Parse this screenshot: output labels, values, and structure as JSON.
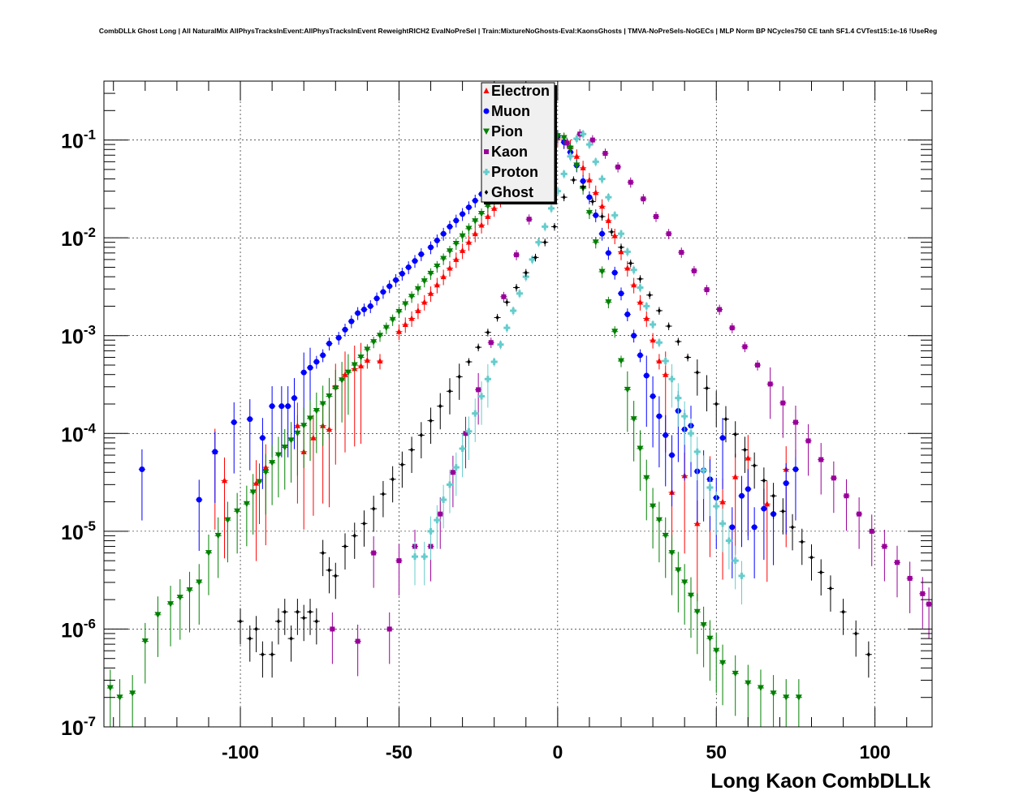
{
  "chart_data": {
    "type": "scatter",
    "title": "CombDLLk Ghost Long | All NaturalMix AllPhysTracksInEvent:AllPhysTracksInEvent ReweightRICH2 EvalNoPreSel | Train:MixtureNoGhosts-Eval:KaonsGhosts | TMVA-NoPreSels-NoGECs | MLP Norm BP NCycles750 CE tanh SF1.4 CVTest15:1e-16 !UseReg",
    "xlabel": "Long Kaon CombDLLk",
    "ylabel": "",
    "xlim": [
      -143,
      118
    ],
    "ylim": [
      1e-07,
      0.4
    ],
    "yscale": "log",
    "grid": true,
    "legend_position": "top-center",
    "x_ticks": [
      -100,
      -50,
      0,
      50,
      100
    ],
    "x_tick_labels": [
      "-100",
      "-50",
      "0",
      "50",
      "100"
    ],
    "y_ticks": [
      {
        "value": 1e-07,
        "base": "10",
        "exp": "-7"
      },
      {
        "value": 1e-06,
        "base": "10",
        "exp": "-6"
      },
      {
        "value": 1e-05,
        "base": "10",
        "exp": "-5"
      },
      {
        "value": 0.0001,
        "base": "10",
        "exp": "-4"
      },
      {
        "value": 0.001,
        "base": "10",
        "exp": "-3"
      },
      {
        "value": 0.01,
        "base": "10",
        "exp": "-2"
      },
      {
        "value": 0.1,
        "base": "10",
        "exp": "-1"
      }
    ],
    "series": [
      {
        "name": "Electron",
        "color": "#ff0000",
        "marker": "triangle-up",
        "x": [
          -108,
          -105,
          -95,
          -92,
          -82,
          -80,
          -77,
          -74,
          -72,
          -70,
          -67,
          -64,
          -62,
          -60,
          -56,
          -50,
          -48,
          -46,
          -44,
          -42,
          -40,
          -38,
          -36,
          -34,
          -32,
          -30,
          -28,
          -26,
          -24,
          -22,
          -20,
          -18,
          -16,
          -14,
          -12,
          -10,
          -8,
          -6,
          -4,
          -2,
          0,
          2,
          4,
          6,
          8,
          10,
          12,
          14,
          16,
          18,
          20,
          22,
          24,
          26,
          28,
          30,
          32,
          34,
          36,
          40,
          44,
          48,
          52,
          56,
          60,
          66,
          72
        ],
        "y": [
          6.5e-05,
          3.3e-05,
          3.1e-05,
          4.5e-05,
          0.00012,
          6.5e-05,
          9e-05,
          0.00012,
          0.00011,
          0.0003,
          0.0004,
          0.00046,
          0.00049,
          0.00056,
          0.00055,
          0.0011,
          0.0013,
          0.0015,
          0.0018,
          0.0022,
          0.0027,
          0.0033,
          0.004,
          0.0049,
          0.006,
          0.0074,
          0.009,
          0.011,
          0.0135,
          0.0165,
          0.02,
          0.025,
          0.03,
          0.037,
          0.045,
          0.055,
          0.066,
          0.078,
          0.09,
          0.1,
          0.105,
          0.1,
          0.085,
          0.068,
          0.052,
          0.039,
          0.029,
          0.021,
          0.015,
          0.0105,
          0.0072,
          0.0049,
          0.0033,
          0.0022,
          0.0015,
          0.0009,
          0.00055,
          0.0004,
          2.5e-05,
          3.7e-05,
          1.2e-05,
          3.4e-05,
          2e-05,
          3.6e-05,
          5.6e-05,
          1.9e-05,
          4.3e-05
        ],
        "err_low_frac": 0.6,
        "err_high_frac": 0.6
      },
      {
        "name": "Muon",
        "color": "#0000ff",
        "marker": "circle",
        "x": [
          -131,
          -113,
          -108,
          -102,
          -97,
          -93,
          -90,
          -87,
          -85,
          -83,
          -80,
          -78,
          -76,
          -74,
          -72,
          -69,
          -67,
          -65,
          -63,
          -61,
          -59,
          -57,
          -55,
          -53,
          -51,
          -49,
          -47,
          -45,
          -43,
          -40,
          -38,
          -36,
          -34,
          -32,
          -30,
          -28,
          -26,
          -24,
          -22,
          -20,
          -18,
          -16,
          -14,
          -12,
          -10,
          -8,
          -6,
          -4,
          -2,
          0,
          2,
          4,
          6,
          8,
          10,
          12,
          14,
          16,
          18,
          20,
          22,
          24,
          26,
          28,
          30,
          32,
          34,
          36,
          38,
          40,
          42,
          44,
          46,
          48,
          50,
          52,
          55,
          58,
          60,
          62,
          65,
          68,
          72,
          75
        ],
        "y": [
          4.3e-05,
          2.1e-05,
          6.5e-05,
          0.00013,
          0.00014,
          9e-05,
          0.00019,
          0.00019,
          0.00019,
          0.00023,
          0.00042,
          0.00047,
          0.00054,
          0.00063,
          0.00083,
          0.00095,
          0.00115,
          0.0014,
          0.0017,
          0.00185,
          0.002,
          0.0024,
          0.0028,
          0.0032,
          0.0037,
          0.0043,
          0.005,
          0.0058,
          0.0068,
          0.008,
          0.0094,
          0.011,
          0.013,
          0.015,
          0.0175,
          0.0205,
          0.024,
          0.028,
          0.033,
          0.039,
          0.045,
          0.053,
          0.062,
          0.072,
          0.083,
          0.094,
          0.103,
          0.11,
          0.115,
          0.11,
          0.095,
          0.075,
          0.055,
          0.038,
          0.026,
          0.017,
          0.011,
          0.007,
          0.0044,
          0.0027,
          0.00165,
          0.001,
          0.00063,
          0.00039,
          0.00024,
          0.00015,
          9.6e-05,
          6e-05,
          0.00017,
          0.00011,
          0.00012,
          4.1e-05,
          4.2e-05,
          3.4e-05,
          2.2e-05,
          9e-05,
          1.1e-05,
          2.3e-05,
          2.7e-05,
          1.1e-05,
          1.7e-05,
          1.5e-05,
          3.1e-05,
          4.3e-05
        ],
        "err_low_frac": 0.5,
        "err_high_frac": 0.5
      },
      {
        "name": "Pion",
        "color": "#008000",
        "marker": "triangle-down",
        "x": [
          -141,
          -138,
          -134,
          -130,
          -126,
          -122,
          -119,
          -116,
          -113,
          -110,
          -107,
          -104,
          -101,
          -98,
          -96,
          -94,
          -92,
          -90,
          -88,
          -86,
          -84,
          -82,
          -80,
          -78,
          -76,
          -74,
          -72,
          -70,
          -68,
          -66,
          -64,
          -62,
          -60,
          -58,
          -56,
          -54,
          -52,
          -50,
          -48,
          -46,
          -44,
          -42,
          -40,
          -38,
          -36,
          -34,
          -32,
          -30,
          -28,
          -26,
          -24,
          -22,
          -20,
          -18,
          -16,
          -14,
          -12,
          -10,
          -8,
          -6,
          -4,
          -2,
          0,
          2,
          4,
          6,
          8,
          10,
          12,
          14,
          16,
          18,
          20,
          22,
          24,
          26,
          28,
          30,
          32,
          34,
          36,
          38,
          40,
          42,
          44,
          46,
          48,
          50,
          52,
          56,
          60,
          64,
          68,
          72,
          76
        ],
        "y": [
          2.5e-07,
          2e-07,
          2.2e-07,
          7.5e-07,
          1.4e-06,
          1.8e-06,
          2.1e-06,
          2.5e-06,
          3e-06,
          6e-06,
          9e-06,
          1.3e-05,
          1.6e-05,
          1.9e-05,
          2.5e-05,
          3.2e-05,
          4e-05,
          5e-05,
          6e-05,
          7.2e-05,
          8.5e-05,
          0.0001,
          0.00012,
          0.000142,
          0.00017,
          0.0002,
          0.00024,
          0.00029,
          0.00035,
          0.00042,
          0.0005,
          0.0006,
          0.00072,
          0.00086,
          0.001,
          0.0012,
          0.00145,
          0.00175,
          0.0021,
          0.0025,
          0.003,
          0.0036,
          0.0043,
          0.0051,
          0.0061,
          0.0073,
          0.0087,
          0.0104,
          0.0124,
          0.0148,
          0.0176,
          0.021,
          0.025,
          0.0295,
          0.035,
          0.0415,
          0.049,
          0.058,
          0.068,
          0.079,
          0.091,
          0.102,
          0.11,
          0.105,
          0.082,
          0.055,
          0.032,
          0.018,
          0.009,
          0.0045,
          0.0022,
          0.0011,
          0.00055,
          0.00028,
          0.00014,
          7e-05,
          3.5e-05,
          1.8e-05,
          1.3e-05,
          9e-06,
          6e-06,
          4e-06,
          3e-06,
          2.2e-06,
          1.5e-06,
          1.1e-06,
          8e-07,
          6e-07,
          4.5e-07,
          3.5e-07,
          2.8e-07,
          2.5e-07,
          2.2e-07,
          2e-07,
          2e-07
        ],
        "err_low_frac": 0.45,
        "err_high_frac": 0.45
      },
      {
        "name": "Kaon",
        "color": "#990099",
        "marker": "square",
        "x": [
          -71,
          -63,
          -58,
          -53,
          -50,
          -45,
          -40,
          -37,
          -33,
          -29,
          -25,
          -21,
          -17,
          -13,
          -9,
          -5,
          -1,
          3,
          7,
          11,
          15,
          19,
          23,
          27,
          31,
          35,
          39,
          43,
          47,
          51,
          55,
          59,
          63,
          67,
          71,
          75,
          79,
          83,
          87,
          91,
          95,
          99,
          103,
          107,
          111,
          115,
          117
        ],
        "y": [
          1e-06,
          7.5e-07,
          6e-06,
          1e-06,
          5e-06,
          7e-06,
          7e-06,
          1.5e-05,
          4e-05,
          0.0001,
          0.00028,
          0.00085,
          0.0025,
          0.0067,
          0.0155,
          0.032,
          0.058,
          0.093,
          0.115,
          0.1,
          0.073,
          0.053,
          0.037,
          0.025,
          0.0165,
          0.011,
          0.0071,
          0.0046,
          0.00295,
          0.00185,
          0.0012,
          0.00077,
          0.0005,
          0.00032,
          0.000205,
          0.00013,
          8.4e-05,
          5.4e-05,
          3.5e-05,
          2.3e-05,
          1.5e-05,
          1e-05,
          7e-06,
          4.8e-06,
          3.3e-06,
          2.3e-06,
          1.8e-06
        ],
        "err_low_frac": 0.4,
        "err_high_frac": 0.4
      },
      {
        "name": "Proton",
        "color": "#66cccc",
        "marker": "cross",
        "x": [
          -45,
          -42,
          -40,
          -38,
          -36,
          -34,
          -32,
          -30,
          -28,
          -26,
          -24,
          -22,
          -20,
          -18,
          -16,
          -14,
          -12,
          -10,
          -8,
          -6,
          -4,
          -2,
          0,
          2,
          4,
          6,
          8,
          10,
          12,
          14,
          16,
          18,
          20,
          22,
          24,
          26,
          28,
          30,
          32,
          34,
          36,
          38,
          40,
          42,
          44,
          46,
          48,
          50,
          52,
          54,
          56,
          58
        ],
        "y": [
          5.5e-06,
          5.5e-06,
          1e-05,
          1.3e-05,
          2.1e-05,
          3e-05,
          4.5e-05,
          7e-05,
          0.000105,
          0.00016,
          0.00024,
          0.00036,
          0.00054,
          0.00081,
          0.0012,
          0.0018,
          0.0027,
          0.004,
          0.006,
          0.009,
          0.013,
          0.02,
          0.03,
          0.045,
          0.068,
          0.103,
          0.115,
          0.09,
          0.06,
          0.04,
          0.026,
          0.017,
          0.011,
          0.0072,
          0.0047,
          0.0031,
          0.002,
          0.0013,
          0.00085,
          0.00055,
          0.00036,
          0.00023,
          0.00015,
          0.0001,
          6.5e-05,
          4.2e-05,
          2.8e-05,
          1.8e-05,
          1.2e-05,
          8e-06,
          5e-06,
          3.5e-06
        ],
        "err_low_frac": 0.35,
        "err_high_frac": 0.35
      },
      {
        "name": "Ghost",
        "color": "#000000",
        "marker": "diamond",
        "x": [
          -100,
          -97,
          -95,
          -93,
          -90,
          -88,
          -86,
          -84,
          -82,
          -80,
          -78,
          -76,
          -74,
          -72,
          -70,
          -67,
          -64,
          -61,
          -58,
          -55,
          -52,
          -49,
          -46,
          -43,
          -40,
          -37,
          -34,
          -31,
          -28,
          -25,
          -22,
          -19,
          -16,
          -13,
          -10,
          -7,
          -4,
          -1,
          2,
          5,
          8,
          11,
          14,
          17,
          20,
          23,
          26,
          29,
          32,
          35,
          38,
          41,
          44,
          47,
          50,
          53,
          56,
          59,
          62,
          65,
          68,
          71,
          74,
          77,
          80,
          83,
          86,
          90,
          94,
          98
        ],
        "y": [
          1.2e-06,
          8e-07,
          1e-06,
          5.5e-07,
          5.5e-07,
          1.2e-06,
          1.5e-06,
          8e-07,
          1.5e-06,
          1.3e-06,
          1.5e-06,
          1.2e-06,
          6e-06,
          4e-06,
          3.5e-06,
          7e-06,
          9e-06,
          1.2e-05,
          1.7e-05,
          2.4e-05,
          3.4e-05,
          4.8e-05,
          6.8e-05,
          9.6e-05,
          0.000135,
          0.00019,
          0.00027,
          0.00038,
          0.00054,
          0.00076,
          0.00108,
          0.00153,
          0.0022,
          0.0031,
          0.0044,
          0.0063,
          0.009,
          0.013,
          0.026,
          0.039,
          0.033,
          0.0235,
          0.0165,
          0.0115,
          0.008,
          0.0055,
          0.0038,
          0.0026,
          0.0018,
          0.00125,
          0.00087,
          0.0006,
          0.00042,
          0.00029,
          0.0002,
          0.00014,
          9.8e-05,
          6.8e-05,
          4.7e-05,
          3.3e-05,
          2.3e-05,
          1.6e-05,
          1.1e-05,
          7.8e-06,
          5.4e-06,
          3.8e-06,
          2.6e-06,
          1.5e-06,
          9e-07,
          5.5e-07
        ],
        "err_low_frac": 0.3,
        "err_high_frac": 0.3
      }
    ]
  }
}
